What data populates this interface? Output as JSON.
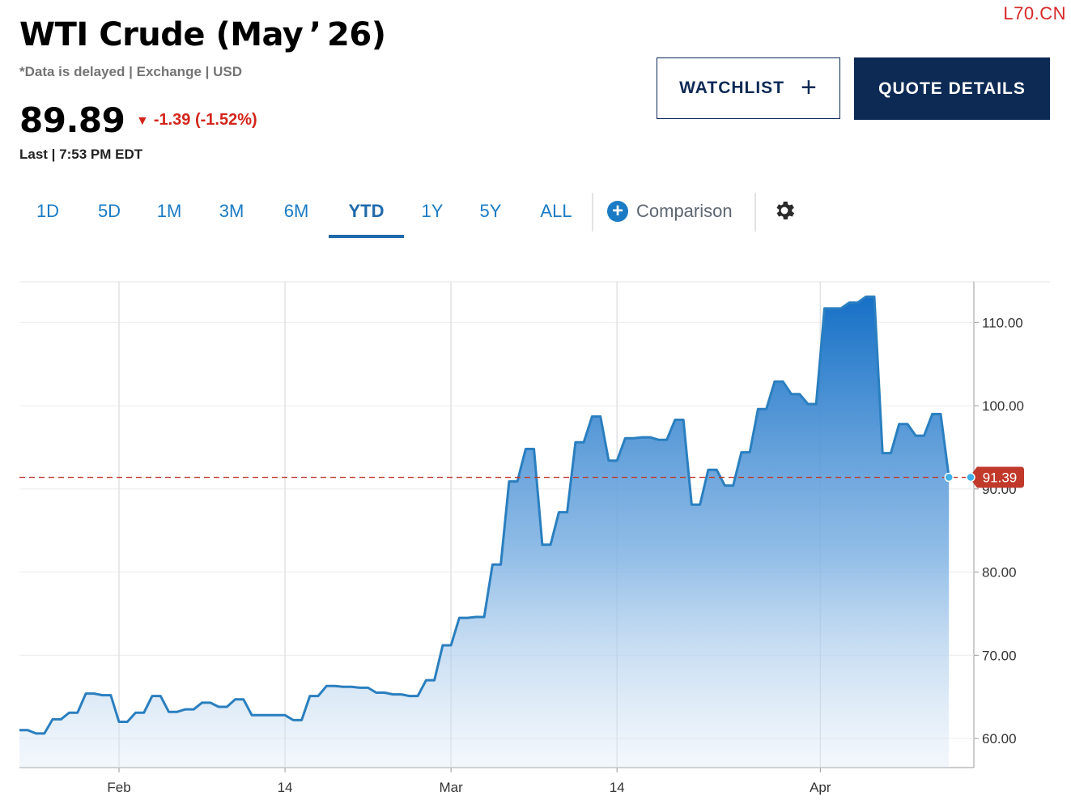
{
  "watermark": "L70.CN",
  "header": {
    "title": "WTI Crude (May ’ 26)",
    "subtitle": "*Data is delayed | Exchange | USD",
    "price": "89.89",
    "change": "-1.39 (-1.52%)",
    "last": "Last | 7:53 PM EDT"
  },
  "buttons": {
    "watchlist": "WATCHLIST",
    "watchlist_icon": "plus-icon",
    "quote": "QUOTE DETAILS"
  },
  "ranges": [
    "1D",
    "5D",
    "1M",
    "3M",
    "6M",
    "YTD",
    "1Y",
    "5Y",
    "ALL"
  ],
  "active_range": "YTD",
  "comparison_label": "Comparison",
  "colors": {
    "accent": "#1a7bc4",
    "navy": "#0d2a55",
    "down": "#d2251b",
    "line": "#2a7fbf"
  },
  "chart_data": {
    "type": "area",
    "y_ticks": [
      "60.00",
      "70.00",
      "80.00",
      "90.00",
      "100.00",
      "110.00"
    ],
    "x_ticks": [
      {
        "label": "Feb",
        "x": 20
      },
      {
        "label": "14",
        "x": 40
      },
      {
        "label": "Mar",
        "x": 60
      },
      {
        "label": "14",
        "x": 80
      },
      {
        "label": "Apr",
        "x": 104.5
      }
    ],
    "ylim": [
      56.5,
      114.9
    ],
    "xlim": [
      8,
      123
    ],
    "reference_line": {
      "value": 91.39,
      "label": "91.39"
    },
    "grid": true,
    "series": [
      {
        "values": [
          [
            8,
            61.0
          ],
          [
            9,
            61.0
          ],
          [
            10,
            60.6
          ],
          [
            11,
            60.6
          ],
          [
            12,
            62.3
          ],
          [
            13,
            62.3
          ],
          [
            14,
            63.1
          ],
          [
            15,
            63.1
          ],
          [
            16,
            65.4
          ],
          [
            17,
            65.4
          ],
          [
            18,
            65.2
          ],
          [
            19,
            65.2
          ],
          [
            20,
            62.0
          ],
          [
            21,
            62.0
          ],
          [
            22,
            63.1
          ],
          [
            23,
            63.1
          ],
          [
            24,
            65.1
          ],
          [
            25,
            65.1
          ],
          [
            26,
            63.2
          ],
          [
            27,
            63.2
          ],
          [
            28,
            63.5
          ],
          [
            29,
            63.5
          ],
          [
            30,
            64.3
          ],
          [
            31,
            64.3
          ],
          [
            32,
            63.8
          ],
          [
            33,
            63.8
          ],
          [
            34,
            64.7
          ],
          [
            35,
            64.7
          ],
          [
            36,
            62.8
          ],
          [
            37,
            62.8
          ],
          [
            38,
            62.8
          ],
          [
            39,
            62.8
          ],
          [
            40,
            62.8
          ],
          [
            41,
            62.2
          ],
          [
            42,
            62.2
          ],
          [
            43,
            65.1
          ],
          [
            44,
            65.1
          ],
          [
            45,
            66.3
          ],
          [
            46,
            66.3
          ],
          [
            47,
            66.2
          ],
          [
            48,
            66.2
          ],
          [
            49,
            66.1
          ],
          [
            50,
            66.1
          ],
          [
            51,
            65.5
          ],
          [
            52,
            65.5
          ],
          [
            53,
            65.3
          ],
          [
            54,
            65.3
          ],
          [
            55,
            65.1
          ],
          [
            56,
            65.1
          ],
          [
            57,
            67.0
          ],
          [
            58,
            67.0
          ],
          [
            59,
            71.2
          ],
          [
            60,
            71.2
          ],
          [
            61,
            74.5
          ],
          [
            62,
            74.5
          ],
          [
            63,
            74.6
          ],
          [
            64,
            74.6
          ],
          [
            65,
            80.9
          ],
          [
            66,
            80.9
          ],
          [
            67,
            90.9
          ],
          [
            68,
            90.9
          ],
          [
            69,
            94.8
          ],
          [
            70,
            94.8
          ],
          [
            71,
            83.3
          ],
          [
            72,
            83.3
          ],
          [
            73,
            87.2
          ],
          [
            74,
            87.2
          ],
          [
            75,
            95.6
          ],
          [
            76,
            95.6
          ],
          [
            77,
            98.7
          ],
          [
            78,
            98.7
          ],
          [
            79,
            93.4
          ],
          [
            80,
            93.4
          ],
          [
            81,
            96.1
          ],
          [
            82,
            96.1
          ],
          [
            83,
            96.2
          ],
          [
            84,
            96.2
          ],
          [
            85,
            95.9
          ],
          [
            86,
            95.9
          ],
          [
            87,
            98.3
          ],
          [
            88,
            98.3
          ],
          [
            89,
            88.1
          ],
          [
            90,
            88.1
          ],
          [
            91,
            92.3
          ],
          [
            92,
            92.3
          ],
          [
            93,
            90.4
          ],
          [
            94,
            90.4
          ],
          [
            95,
            94.4
          ],
          [
            96,
            94.4
          ],
          [
            97,
            99.6
          ],
          [
            98,
            99.6
          ],
          [
            99,
            102.9
          ],
          [
            100,
            102.9
          ],
          [
            101,
            101.4
          ],
          [
            102,
            101.4
          ],
          [
            103,
            100.2
          ],
          [
            104,
            100.2
          ],
          [
            105,
            111.7
          ],
          [
            106,
            111.7
          ],
          [
            107,
            111.7
          ],
          [
            108,
            112.4
          ],
          [
            109,
            112.4
          ],
          [
            110,
            113.1
          ],
          [
            111,
            113.1
          ],
          [
            112,
            94.3
          ],
          [
            113,
            94.3
          ],
          [
            114,
            97.8
          ],
          [
            115,
            97.8
          ],
          [
            116,
            96.4
          ],
          [
            117,
            96.4
          ],
          [
            118,
            99.0
          ],
          [
            119,
            99.0
          ],
          [
            120,
            91.39
          ]
        ]
      }
    ]
  }
}
